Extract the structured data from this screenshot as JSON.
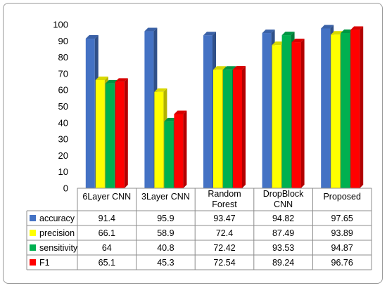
{
  "chart_data": {
    "type": "bar",
    "title": "",
    "xlabel": "",
    "ylabel": "",
    "ylim": [
      0,
      100
    ],
    "yticks": [
      0,
      10,
      20,
      30,
      40,
      50,
      60,
      70,
      80,
      90,
      100
    ],
    "grid": false,
    "style": "3d-clustered-bar-with-data-table",
    "categories": [
      "6Layer CNN",
      "3Layer CNN",
      "Random Forest",
      "DropBlock CNN",
      "Proposed"
    ],
    "category_lines": [
      [
        "6Layer CNN"
      ],
      [
        "3Layer CNN"
      ],
      [
        "Random",
        "Forest"
      ],
      [
        "DropBlock",
        "CNN"
      ],
      [
        "Proposed"
      ]
    ],
    "series": [
      {
        "name": "accuracy",
        "color": "#4472C4",
        "values": [
          91.4,
          95.9,
          93.47,
          94.82,
          97.65
        ],
        "labels": [
          "91.4",
          "95.9",
          "93.47",
          "94.82",
          "97.65"
        ]
      },
      {
        "name": "precision",
        "color": "#FFFF00",
        "values": [
          66.1,
          58.9,
          72.4,
          87.49,
          93.89
        ],
        "labels": [
          "66.1",
          "58.9",
          "72.4",
          "87.49",
          "93.89"
        ]
      },
      {
        "name": "sensitivity",
        "color": "#00B050",
        "values": [
          64,
          40.8,
          72.42,
          93.53,
          94.87
        ],
        "labels": [
          "64",
          "40.8",
          "72.42",
          "93.53",
          "94.87"
        ]
      },
      {
        "name": "F1",
        "color": "#FF0000",
        "values": [
          65.1,
          45.3,
          72.54,
          89.24,
          96.76
        ],
        "labels": [
          "65.1",
          "45.3",
          "72.54",
          "89.24",
          "96.76"
        ]
      }
    ]
  }
}
